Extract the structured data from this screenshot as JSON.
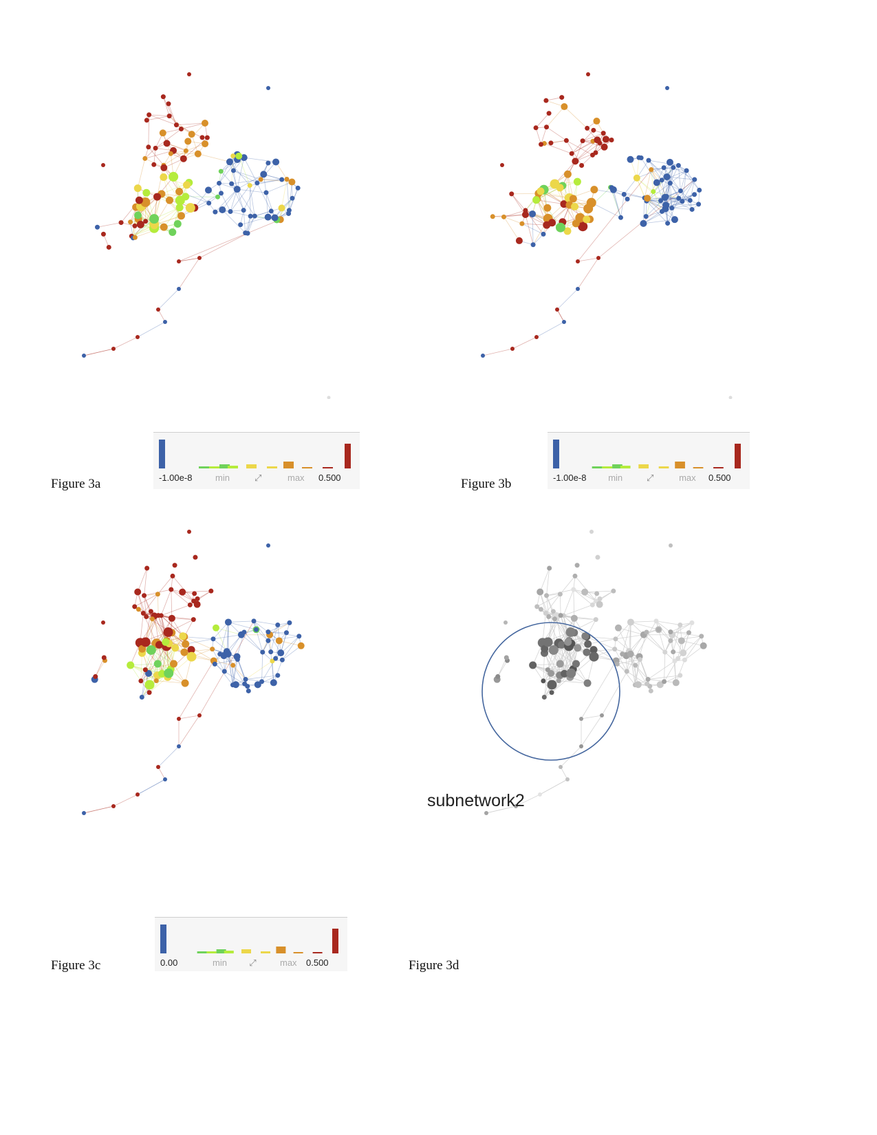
{
  "figures": [
    {
      "id": "3a",
      "label": "Figure 3a",
      "legend": {
        "min_value": "-1.00e-8",
        "min_label": "min",
        "max_label": "max",
        "max_value": "0.500"
      }
    },
    {
      "id": "3b",
      "label": "Figure 3b",
      "legend": {
        "min_value": "-1.00e-8",
        "min_label": "min",
        "max_label": "max",
        "max_value": "0.500"
      }
    },
    {
      "id": "3c",
      "label": "Figure 3c",
      "legend": {
        "min_value": "0.00",
        "min_label": "min",
        "max_label": "max",
        "max_value": "0.500"
      }
    },
    {
      "id": "3d",
      "label": "Figure 3d",
      "annotation": "subnetwork2"
    }
  ],
  "colors": {
    "blue": "#3d62a8",
    "red": "#a8281e",
    "orange": "#d8902a",
    "yellow": "#ecd74a",
    "lime": "#b5ec3c",
    "green": "#6fd25b",
    "gray_edge": "#c8c8c8",
    "circle": "#44669e"
  }
}
